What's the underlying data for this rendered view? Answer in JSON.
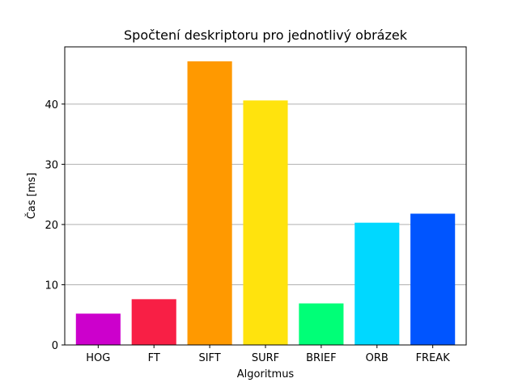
{
  "chart_data": {
    "type": "bar",
    "title": "Spočtení deskriptoru pro jednotlivý obrázek",
    "xlabel": "Algoritmus",
    "ylabel": "Čas [ms]",
    "categories": [
      "HOG",
      "FT",
      "SIFT",
      "SURF",
      "BRIEF",
      "ORB",
      "FREAK"
    ],
    "values": [
      5.2,
      7.6,
      47.1,
      40.6,
      6.9,
      20.3,
      21.8
    ],
    "colors": [
      "#cc00cc",
      "#f81f45",
      "#ff9900",
      "#ffe30d",
      "#00ff77",
      "#00d8ff",
      "#0055ff"
    ],
    "ylim": [
      0,
      49.5
    ],
    "yticks": [
      0,
      10,
      20,
      30,
      40
    ],
    "ytick_labels": [
      "0",
      "10",
      "20",
      "30",
      "40"
    ],
    "grid": "y-axis horizontal lines",
    "legend": "none"
  }
}
